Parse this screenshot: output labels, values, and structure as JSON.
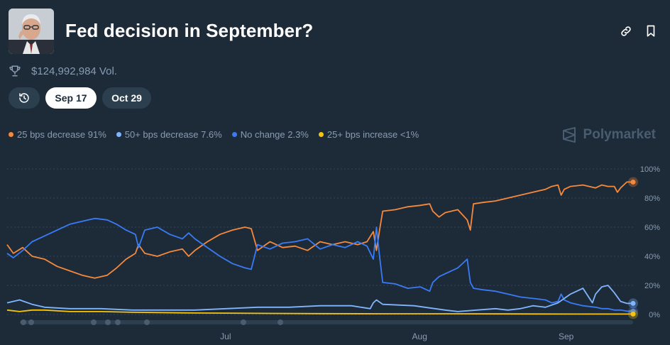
{
  "header": {
    "title": "Fed decision in September?",
    "avatar_icon": "person-portrait",
    "link_icon": "link-icon",
    "bookmark_icon": "bookmark-icon"
  },
  "volume": {
    "icon": "trophy-icon",
    "text": "$124,992,984 Vol."
  },
  "date_tabs": [
    {
      "label": "Sep 17",
      "selected": true
    },
    {
      "label": "Oct 29",
      "selected": false
    }
  ],
  "legend": [
    {
      "label": "25 bps decrease 91%",
      "color": "#f7893b"
    },
    {
      "label": "50+ bps decrease 7.6%",
      "color": "#80b5ff"
    },
    {
      "label": "No change 2.3%",
      "color": "#3a7bf5"
    },
    {
      "label": "25+ bps increase <1%",
      "color": "#f6c40c"
    }
  ],
  "brand": {
    "name": "Polymarket",
    "icon": "polymarket-logo-icon"
  },
  "chart_data": {
    "type": "line",
    "y_range": [
      0,
      100
    ],
    "y_ticks": [
      "100%",
      "80%",
      "60%",
      "40%",
      "20%",
      "0%"
    ],
    "x_ticks": [
      {
        "label": "Jul",
        "t": 0.349
      },
      {
        "label": "Aug",
        "t": 0.659
      },
      {
        "label": "Sep",
        "t": 0.893
      }
    ],
    "grid": true,
    "series": [
      {
        "name": "25 bps decrease",
        "color": "#f7893b",
        "points": [
          [
            0,
            48
          ],
          [
            0.01,
            42
          ],
          [
            0.025,
            46
          ],
          [
            0.04,
            40
          ],
          [
            0.06,
            38
          ],
          [
            0.08,
            33
          ],
          [
            0.1,
            30
          ],
          [
            0.12,
            27
          ],
          [
            0.14,
            25
          ],
          [
            0.16,
            27
          ],
          [
            0.175,
            32
          ],
          [
            0.19,
            38
          ],
          [
            0.205,
            42
          ],
          [
            0.21,
            48
          ],
          [
            0.22,
            42
          ],
          [
            0.24,
            40
          ],
          [
            0.26,
            43
          ],
          [
            0.28,
            45
          ],
          [
            0.29,
            40
          ],
          [
            0.3,
            44
          ],
          [
            0.32,
            50
          ],
          [
            0.34,
            55
          ],
          [
            0.36,
            58
          ],
          [
            0.38,
            60
          ],
          [
            0.39,
            59
          ],
          [
            0.4,
            44
          ],
          [
            0.42,
            50
          ],
          [
            0.44,
            46
          ],
          [
            0.46,
            47
          ],
          [
            0.48,
            44
          ],
          [
            0.5,
            50
          ],
          [
            0.52,
            48
          ],
          [
            0.54,
            50
          ],
          [
            0.56,
            48
          ],
          [
            0.575,
            50
          ],
          [
            0.585,
            57
          ],
          [
            0.59,
            44
          ],
          [
            0.595,
            58
          ],
          [
            0.6,
            71
          ],
          [
            0.62,
            72
          ],
          [
            0.64,
            74
          ],
          [
            0.66,
            75
          ],
          [
            0.675,
            76
          ],
          [
            0.68,
            71
          ],
          [
            0.69,
            67
          ],
          [
            0.7,
            70
          ],
          [
            0.72,
            72
          ],
          [
            0.735,
            65
          ],
          [
            0.74,
            58
          ],
          [
            0.745,
            76
          ],
          [
            0.76,
            77
          ],
          [
            0.78,
            78
          ],
          [
            0.8,
            80
          ],
          [
            0.82,
            82
          ],
          [
            0.84,
            84
          ],
          [
            0.86,
            86
          ],
          [
            0.87,
            88
          ],
          [
            0.88,
            89
          ],
          [
            0.885,
            82
          ],
          [
            0.89,
            86
          ],
          [
            0.9,
            88
          ],
          [
            0.92,
            89
          ],
          [
            0.94,
            87
          ],
          [
            0.95,
            89
          ],
          [
            0.96,
            88
          ],
          [
            0.97,
            88
          ],
          [
            0.975,
            84
          ],
          [
            0.98,
            87
          ],
          [
            0.99,
            91
          ],
          [
            1.0,
            91
          ]
        ]
      },
      {
        "name": "No change",
        "color": "#3a7bf5",
        "points": [
          [
            0,
            42
          ],
          [
            0.01,
            39
          ],
          [
            0.025,
            44
          ],
          [
            0.04,
            50
          ],
          [
            0.06,
            54
          ],
          [
            0.08,
            58
          ],
          [
            0.1,
            62
          ],
          [
            0.12,
            64
          ],
          [
            0.14,
            66
          ],
          [
            0.16,
            65
          ],
          [
            0.175,
            62
          ],
          [
            0.19,
            58
          ],
          [
            0.205,
            55
          ],
          [
            0.21,
            46
          ],
          [
            0.22,
            58
          ],
          [
            0.24,
            60
          ],
          [
            0.26,
            55
          ],
          [
            0.28,
            52
          ],
          [
            0.29,
            56
          ],
          [
            0.3,
            52
          ],
          [
            0.32,
            46
          ],
          [
            0.34,
            40
          ],
          [
            0.36,
            35
          ],
          [
            0.38,
            32
          ],
          [
            0.39,
            31
          ],
          [
            0.4,
            48
          ],
          [
            0.42,
            45
          ],
          [
            0.44,
            49
          ],
          [
            0.46,
            50
          ],
          [
            0.48,
            52
          ],
          [
            0.5,
            45
          ],
          [
            0.52,
            48
          ],
          [
            0.54,
            46
          ],
          [
            0.56,
            50
          ],
          [
            0.575,
            47
          ],
          [
            0.585,
            38
          ],
          [
            0.59,
            60
          ],
          [
            0.595,
            40
          ],
          [
            0.6,
            22
          ],
          [
            0.62,
            21
          ],
          [
            0.64,
            18
          ],
          [
            0.66,
            19
          ],
          [
            0.675,
            16
          ],
          [
            0.68,
            22
          ],
          [
            0.69,
            26
          ],
          [
            0.7,
            28
          ],
          [
            0.72,
            32
          ],
          [
            0.735,
            38
          ],
          [
            0.74,
            22
          ],
          [
            0.745,
            18
          ],
          [
            0.76,
            17
          ],
          [
            0.78,
            16
          ],
          [
            0.8,
            14
          ],
          [
            0.82,
            12
          ],
          [
            0.84,
            11
          ],
          [
            0.86,
            10
          ],
          [
            0.87,
            8
          ],
          [
            0.88,
            9
          ],
          [
            0.885,
            14
          ],
          [
            0.89,
            10
          ],
          [
            0.9,
            8
          ],
          [
            0.92,
            6
          ],
          [
            0.94,
            5
          ],
          [
            0.95,
            4
          ],
          [
            0.96,
            4
          ],
          [
            0.97,
            3
          ],
          [
            0.98,
            3
          ],
          [
            0.99,
            2.3
          ],
          [
            1.0,
            2.3
          ]
        ]
      },
      {
        "name": "50+ bps decrease",
        "color": "#80b5ff",
        "points": [
          [
            0,
            8
          ],
          [
            0.02,
            10
          ],
          [
            0.04,
            7
          ],
          [
            0.06,
            5
          ],
          [
            0.1,
            4
          ],
          [
            0.15,
            4
          ],
          [
            0.2,
            3
          ],
          [
            0.25,
            3
          ],
          [
            0.3,
            3
          ],
          [
            0.35,
            4
          ],
          [
            0.4,
            5
          ],
          [
            0.45,
            5
          ],
          [
            0.5,
            6
          ],
          [
            0.55,
            6
          ],
          [
            0.58,
            4
          ],
          [
            0.585,
            8
          ],
          [
            0.59,
            10
          ],
          [
            0.6,
            7
          ],
          [
            0.65,
            6
          ],
          [
            0.7,
            3
          ],
          [
            0.72,
            2
          ],
          [
            0.75,
            3
          ],
          [
            0.78,
            4
          ],
          [
            0.8,
            3
          ],
          [
            0.82,
            4
          ],
          [
            0.84,
            6
          ],
          [
            0.86,
            5
          ],
          [
            0.88,
            8
          ],
          [
            0.9,
            14
          ],
          [
            0.92,
            18
          ],
          [
            0.935,
            8
          ],
          [
            0.94,
            14
          ],
          [
            0.95,
            19
          ],
          [
            0.96,
            20
          ],
          [
            0.97,
            15
          ],
          [
            0.98,
            9
          ],
          [
            0.99,
            7.6
          ],
          [
            1.0,
            7.6
          ]
        ]
      },
      {
        "name": "25+ bps increase",
        "color": "#f6c40c",
        "points": [
          [
            0,
            3
          ],
          [
            0.02,
            2
          ],
          [
            0.04,
            3
          ],
          [
            0.06,
            3
          ],
          [
            0.1,
            2
          ],
          [
            0.15,
            2
          ],
          [
            0.2,
            1.5
          ],
          [
            0.3,
            1
          ],
          [
            0.4,
            0.8
          ],
          [
            0.5,
            0.6
          ],
          [
            0.6,
            0.5
          ],
          [
            0.7,
            0.5
          ],
          [
            0.8,
            0.4
          ],
          [
            0.9,
            0.3
          ],
          [
            1.0,
            0.3
          ]
        ]
      }
    ]
  }
}
